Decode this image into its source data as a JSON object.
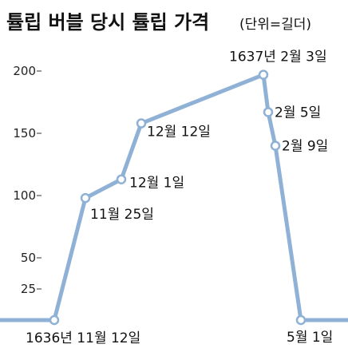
{
  "chart_data": {
    "type": "line",
    "title": "튤립 버블 당시 튤립 가격",
    "subtitle": "(단위=길더)",
    "xlabel": "",
    "ylabel": "",
    "ylim": [
      0,
      210
    ],
    "yticks": [
      25,
      50,
      100,
      150,
      200
    ],
    "grid": false,
    "legend": "none",
    "color": "#8fb1d6",
    "series": [
      {
        "points": [
          {
            "label": "",
            "y": 0
          },
          {
            "label": "1636년 11월 12일",
            "y": 0
          },
          {
            "label": "11월 25일",
            "y": 98
          },
          {
            "label": "12월 1일",
            "y": 113
          },
          {
            "label": "12월 12일",
            "y": 158
          },
          {
            "label": "1637년 2월 3일",
            "y": 197
          },
          {
            "label": "2월 5일",
            "y": 167
          },
          {
            "label": "2월 9일",
            "y": 140
          },
          {
            "label": "5월 1일",
            "y": 0
          },
          {
            "label": "",
            "y": 0
          }
        ]
      }
    ]
  }
}
